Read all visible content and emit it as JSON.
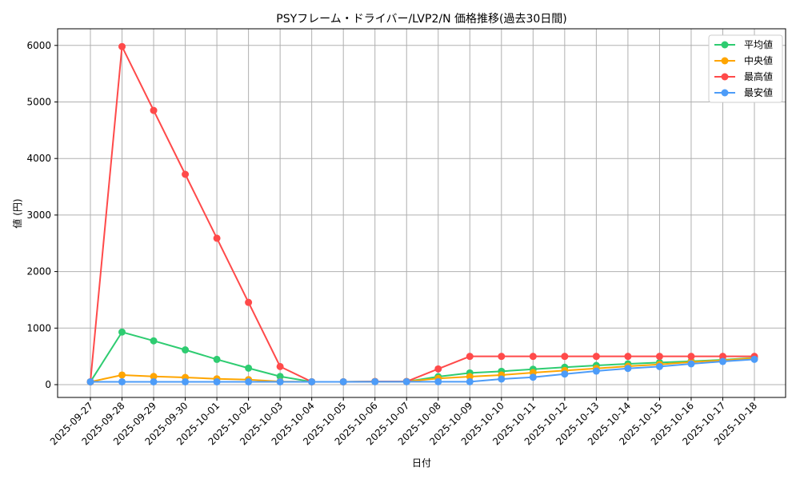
{
  "chart_data": {
    "type": "line",
    "title": "PSYフレーム・ドライバー/LVP2/N 価格推移(過去30日間)",
    "xlabel": "日付",
    "ylabel": "値 (円)",
    "ylim": [
      -230,
      6250
    ],
    "yticks": [
      0,
      1000,
      2000,
      3000,
      4000,
      5000,
      6000
    ],
    "grid": true,
    "legend_position": "top-right",
    "x": [
      "2025-09-27",
      "2025-09-28",
      "2025-09-29",
      "2025-09-30",
      "2025-10-01",
      "2025-10-02",
      "2025-10-03",
      "2025-10-04",
      "2025-10-05",
      "2025-10-06",
      "2025-10-07",
      "2025-10-08",
      "2025-10-09",
      "2025-10-10",
      "2025-10-11",
      "2025-10-12",
      "2025-10-13",
      "2025-10-14",
      "2025-10-15",
      "2025-10-16",
      "2025-10-17",
      "2025-10-18"
    ],
    "series": [
      {
        "name": "平均値",
        "color": "#2ecc71",
        "values": [
          50,
          930,
          775,
          615,
          447,
          292,
          145,
          50,
          50,
          55,
          55,
          141,
          207,
          236,
          273,
          307,
          339,
          368,
          391,
          414,
          438,
          476
        ]
      },
      {
        "name": "中央値",
        "color": "#ffa500",
        "values": [
          50,
          170,
          145,
          127,
          103,
          89,
          55,
          50,
          50,
          55,
          55,
          109,
          141,
          170,
          212,
          250,
          287,
          325,
          358,
          400,
          428,
          471
        ]
      },
      {
        "name": "最高値",
        "color": "#ff4a4a",
        "values": [
          50,
          5980,
          4850,
          3720,
          2590,
          1455,
          320,
          50,
          50,
          55,
          55,
          278,
          500,
          500,
          500,
          500,
          500,
          500,
          500,
          500,
          500,
          500
        ]
      },
      {
        "name": "最安値",
        "color": "#4d9cf8",
        "values": [
          50,
          50,
          50,
          50,
          50,
          50,
          50,
          50,
          50,
          52,
          52,
          52,
          52,
          99,
          131,
          188,
          240,
          287,
          320,
          368,
          410,
          448
        ]
      }
    ]
  }
}
